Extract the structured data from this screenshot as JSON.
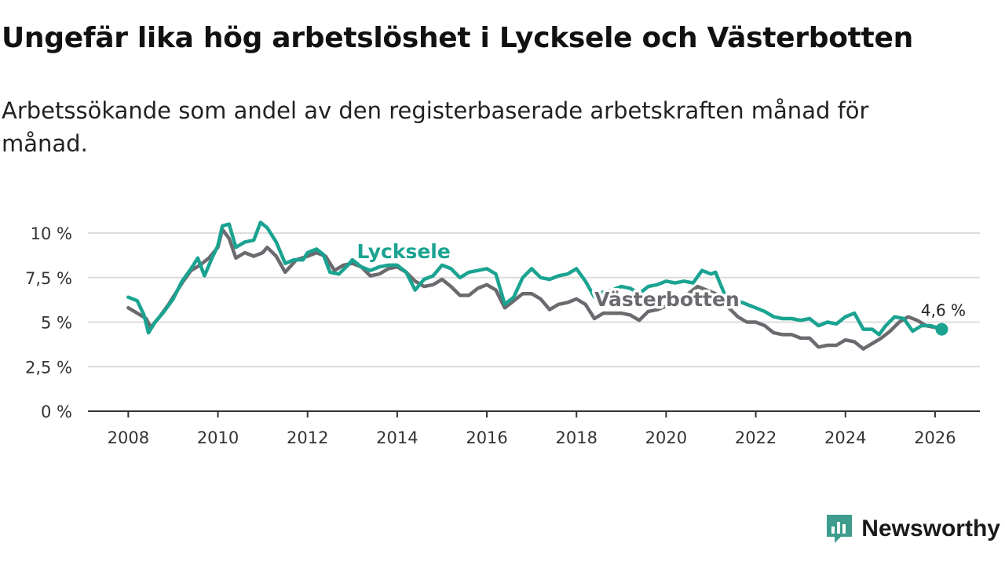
{
  "header": {
    "title": "Ungefär lika hög arbetslöshet i Lycksele och Västerbotten",
    "subtitle": "Arbetssökande som andel av den registerbaserade arbetskraften månad för månad."
  },
  "brand": {
    "name": "Newsworthy",
    "icon": "newsworthy-logo-icon"
  },
  "colors": {
    "lycksele": "#1aa391",
    "vasterbotten": "#6b6a6f",
    "grid": "#dddddd",
    "axis": "#333333",
    "brand": "#3d9c8b"
  },
  "chart_data": {
    "type": "line",
    "title": "Ungefär lika hög arbetslöshet i Lycksele och Västerbotten",
    "subtitle": "Arbetssökande som andel av den registerbaserade arbetskraften månad för månad.",
    "xlabel": "",
    "ylabel": "",
    "xlim": [
      2007.1,
      2027.0
    ],
    "ylim": [
      0,
      10
    ],
    "y_ticks": [
      0,
      2.5,
      5,
      7.5,
      10
    ],
    "y_tick_labels": [
      "0 %",
      "2,5 %",
      "5 %",
      "7,5 %",
      "10 %"
    ],
    "x_ticks": [
      2008,
      2010,
      2012,
      2014,
      2016,
      2018,
      2020,
      2022,
      2024,
      2026
    ],
    "x_tick_labels": [
      "2008",
      "2010",
      "2012",
      "2014",
      "2016",
      "2018",
      "2020",
      "2022",
      "2024",
      "2026"
    ],
    "grid": true,
    "series": [
      {
        "name": "Västerbotten",
        "label": "Västerbotten",
        "points": [
          [
            2008.0,
            5.8
          ],
          [
            2008.2,
            5.5
          ],
          [
            2008.4,
            5.2
          ],
          [
            2008.5,
            4.7
          ],
          [
            2008.7,
            5.3
          ],
          [
            2008.9,
            6.0
          ],
          [
            2009.0,
            6.4
          ],
          [
            2009.2,
            7.2
          ],
          [
            2009.4,
            7.9
          ],
          [
            2009.6,
            8.2
          ],
          [
            2009.8,
            8.6
          ],
          [
            2010.0,
            9.2
          ],
          [
            2010.1,
            10.2
          ],
          [
            2010.25,
            9.7
          ],
          [
            2010.4,
            8.6
          ],
          [
            2010.6,
            8.9
          ],
          [
            2010.8,
            8.7
          ],
          [
            2011.0,
            8.9
          ],
          [
            2011.1,
            9.2
          ],
          [
            2011.3,
            8.7
          ],
          [
            2011.5,
            7.8
          ],
          [
            2011.75,
            8.5
          ],
          [
            2012.0,
            8.7
          ],
          [
            2012.2,
            8.9
          ],
          [
            2012.4,
            8.7
          ],
          [
            2012.6,
            7.9
          ],
          [
            2012.8,
            8.2
          ],
          [
            2013.0,
            8.3
          ],
          [
            2013.2,
            8.1
          ],
          [
            2013.4,
            7.6
          ],
          [
            2013.6,
            7.7
          ],
          [
            2013.8,
            8.0
          ],
          [
            2014.0,
            8.1
          ],
          [
            2014.2,
            7.8
          ],
          [
            2014.4,
            7.3
          ],
          [
            2014.6,
            7.0
          ],
          [
            2014.8,
            7.1
          ],
          [
            2015.0,
            7.4
          ],
          [
            2015.2,
            7.0
          ],
          [
            2015.4,
            6.5
          ],
          [
            2015.6,
            6.5
          ],
          [
            2015.8,
            6.9
          ],
          [
            2016.0,
            7.1
          ],
          [
            2016.2,
            6.8
          ],
          [
            2016.4,
            5.8
          ],
          [
            2016.6,
            6.2
          ],
          [
            2016.8,
            6.6
          ],
          [
            2017.0,
            6.6
          ],
          [
            2017.2,
            6.3
          ],
          [
            2017.4,
            5.7
          ],
          [
            2017.6,
            6.0
          ],
          [
            2017.8,
            6.1
          ],
          [
            2018.0,
            6.3
          ],
          [
            2018.2,
            6.0
          ],
          [
            2018.4,
            5.2
          ],
          [
            2018.6,
            5.5
          ],
          [
            2018.8,
            5.5
          ],
          [
            2019.0,
            5.5
          ],
          [
            2019.2,
            5.4
          ],
          [
            2019.4,
            5.1
          ],
          [
            2019.6,
            5.6
          ],
          [
            2019.8,
            5.7
          ],
          [
            2020.0,
            5.9
          ],
          [
            2020.2,
            6.1
          ],
          [
            2020.5,
            6.6
          ],
          [
            2020.7,
            7.0
          ],
          [
            2020.9,
            6.8
          ],
          [
            2021.0,
            6.7
          ],
          [
            2021.2,
            6.5
          ],
          [
            2021.4,
            5.8
          ],
          [
            2021.6,
            5.3
          ],
          [
            2021.8,
            5.0
          ],
          [
            2022.0,
            5.0
          ],
          [
            2022.2,
            4.8
          ],
          [
            2022.4,
            4.4
          ],
          [
            2022.6,
            4.3
          ],
          [
            2022.8,
            4.3
          ],
          [
            2023.0,
            4.1
          ],
          [
            2023.2,
            4.1
          ],
          [
            2023.4,
            3.6
          ],
          [
            2023.6,
            3.7
          ],
          [
            2023.8,
            3.7
          ],
          [
            2024.0,
            4.0
          ],
          [
            2024.2,
            3.9
          ],
          [
            2024.4,
            3.5
          ],
          [
            2024.6,
            3.8
          ],
          [
            2024.8,
            4.1
          ],
          [
            2025.0,
            4.5
          ],
          [
            2025.2,
            5.0
          ],
          [
            2025.4,
            5.3
          ],
          [
            2025.6,
            5.1
          ],
          [
            2025.8,
            4.8
          ],
          [
            2026.0,
            4.7
          ],
          [
            2026.15,
            4.6
          ]
        ]
      },
      {
        "name": "Lycksele",
        "label": "Lycksele",
        "points": [
          [
            2008.0,
            6.4
          ],
          [
            2008.2,
            6.2
          ],
          [
            2008.35,
            5.4
          ],
          [
            2008.45,
            4.4
          ],
          [
            2008.6,
            5.0
          ],
          [
            2008.8,
            5.6
          ],
          [
            2009.0,
            6.3
          ],
          [
            2009.2,
            7.3
          ],
          [
            2009.4,
            8.0
          ],
          [
            2009.55,
            8.6
          ],
          [
            2009.7,
            7.6
          ],
          [
            2009.85,
            8.5
          ],
          [
            2010.0,
            9.3
          ],
          [
            2010.1,
            10.4
          ],
          [
            2010.25,
            10.5
          ],
          [
            2010.4,
            9.2
          ],
          [
            2010.6,
            9.5
          ],
          [
            2010.8,
            9.6
          ],
          [
            2010.95,
            10.6
          ],
          [
            2011.1,
            10.3
          ],
          [
            2011.3,
            9.5
          ],
          [
            2011.5,
            8.3
          ],
          [
            2011.7,
            8.5
          ],
          [
            2011.9,
            8.5
          ],
          [
            2012.0,
            8.9
          ],
          [
            2012.2,
            9.1
          ],
          [
            2012.35,
            8.8
          ],
          [
            2012.5,
            7.8
          ],
          [
            2012.7,
            7.7
          ],
          [
            2012.9,
            8.2
          ],
          [
            2013.0,
            8.5
          ],
          [
            2013.2,
            8.1
          ],
          [
            2013.4,
            7.9
          ],
          [
            2013.6,
            8.1
          ],
          [
            2013.8,
            8.2
          ],
          [
            2014.0,
            8.2
          ],
          [
            2014.2,
            7.8
          ],
          [
            2014.4,
            6.8
          ],
          [
            2014.6,
            7.4
          ],
          [
            2014.8,
            7.6
          ],
          [
            2015.0,
            8.2
          ],
          [
            2015.2,
            8.0
          ],
          [
            2015.4,
            7.5
          ],
          [
            2015.6,
            7.8
          ],
          [
            2015.8,
            7.9
          ],
          [
            2016.0,
            8.0
          ],
          [
            2016.2,
            7.7
          ],
          [
            2016.4,
            6.0
          ],
          [
            2016.6,
            6.4
          ],
          [
            2016.8,
            7.5
          ],
          [
            2017.0,
            8.0
          ],
          [
            2017.2,
            7.5
          ],
          [
            2017.4,
            7.4
          ],
          [
            2017.6,
            7.6
          ],
          [
            2017.8,
            7.7
          ],
          [
            2018.0,
            8.0
          ],
          [
            2018.2,
            7.3
          ],
          [
            2018.4,
            6.4
          ],
          [
            2018.6,
            6.7
          ],
          [
            2018.8,
            6.8
          ],
          [
            2019.0,
            7.0
          ],
          [
            2019.2,
            6.9
          ],
          [
            2019.4,
            6.6
          ],
          [
            2019.6,
            7.0
          ],
          [
            2019.8,
            7.1
          ],
          [
            2020.0,
            7.3
          ],
          [
            2020.2,
            7.2
          ],
          [
            2020.4,
            7.3
          ],
          [
            2020.6,
            7.2
          ],
          [
            2020.8,
            7.9
          ],
          [
            2021.0,
            7.7
          ],
          [
            2021.1,
            7.8
          ],
          [
            2021.3,
            6.6
          ],
          [
            2021.5,
            6.2
          ],
          [
            2021.7,
            6.1
          ],
          [
            2021.9,
            5.9
          ],
          [
            2022.0,
            5.8
          ],
          [
            2022.2,
            5.6
          ],
          [
            2022.4,
            5.3
          ],
          [
            2022.6,
            5.2
          ],
          [
            2022.8,
            5.2
          ],
          [
            2023.0,
            5.1
          ],
          [
            2023.2,
            5.2
          ],
          [
            2023.4,
            4.8
          ],
          [
            2023.6,
            5.0
          ],
          [
            2023.8,
            4.9
          ],
          [
            2024.0,
            5.3
          ],
          [
            2024.2,
            5.5
          ],
          [
            2024.4,
            4.6
          ],
          [
            2024.6,
            4.6
          ],
          [
            2024.75,
            4.3
          ],
          [
            2024.9,
            4.8
          ],
          [
            2025.1,
            5.3
          ],
          [
            2025.3,
            5.2
          ],
          [
            2025.5,
            4.5
          ],
          [
            2025.7,
            4.8
          ],
          [
            2025.9,
            4.8
          ],
          [
            2026.15,
            4.6
          ]
        ]
      }
    ],
    "labels": {
      "lycksele": {
        "text": "Lycksele",
        "x": 2013.1,
        "y": 8.6
      },
      "vasterbotten": {
        "text": "Västerbotten",
        "x": 2018.4,
        "y": 5.9
      },
      "end_value": {
        "text": "4,6 %",
        "x": 2026.15,
        "y": 4.6
      }
    }
  }
}
